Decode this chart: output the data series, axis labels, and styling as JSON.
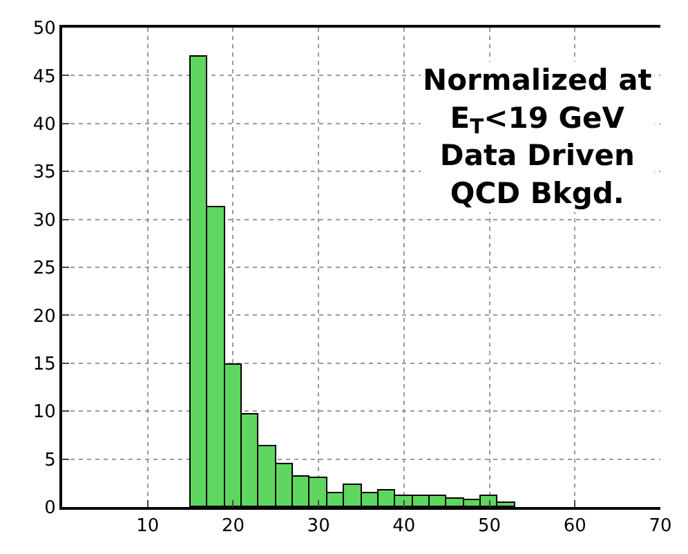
{
  "chart_data": {
    "type": "histogram",
    "bins": [
      15,
      17,
      19,
      21,
      23,
      25,
      27,
      29,
      31,
      33,
      35,
      37,
      39,
      41,
      43,
      45,
      47,
      49,
      51,
      53
    ],
    "values": [
      47,
      31.3,
      14.8,
      9.7,
      6.3,
      4.4,
      3.1,
      3.0,
      1.4,
      2.3,
      1.4,
      1.8,
      1.2,
      1.2,
      1.2,
      0.9,
      0.7,
      1.2,
      0.4
    ],
    "color": "#5fd65f",
    "xlim": [
      0,
      70
    ],
    "xticks": [
      10,
      20,
      30,
      40,
      50,
      60,
      70
    ],
    "ylim": [
      0,
      50
    ],
    "yticks": [
      0,
      5,
      10,
      15,
      20,
      25,
      30,
      35,
      40,
      45,
      50
    ],
    "grid": true,
    "annotations": [
      "Normalized at\nE$_{T}$<19 GeV\nData Driven\nQCD Bkgd."
    ]
  }
}
